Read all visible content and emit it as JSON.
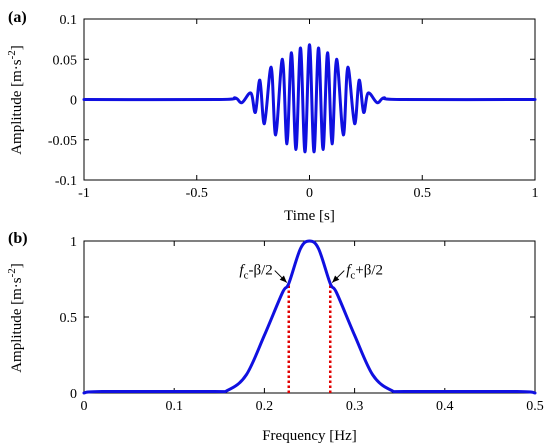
{
  "chart_data": [
    {
      "panel": "(a)",
      "type": "line",
      "xlabel": "Time [s]",
      "ylabel": "Amplitude [m·s",
      "ylabel_unit_exponent": "2",
      "xlim": [
        -1,
        1
      ],
      "ylim": [
        -0.1,
        0.1
      ],
      "xticks": [
        "-1",
        "-0.5",
        "0",
        "0.5",
        "1"
      ],
      "yticks": [
        "-0.1",
        "-0.05",
        "0",
        "0.05",
        "0.1"
      ],
      "series": [
        {
          "color": "#1010e0",
          "x": [
            -1,
            -0.4,
            -0.33,
            -0.3,
            -0.26,
            -0.24,
            -0.22,
            -0.2,
            -0.17,
            -0.15,
            -0.12,
            -0.1,
            -0.08,
            -0.06,
            -0.04,
            -0.02,
            0,
            0.02,
            0.04,
            0.06,
            0.08,
            0.1,
            0.12,
            0.15,
            0.17,
            0.2,
            0.22,
            0.24,
            0.26,
            0.3,
            0.33,
            0.4,
            1
          ],
          "y": [
            0,
            0,
            0.002,
            -0.004,
            0.008,
            -0.016,
            0.024,
            -0.03,
            0.04,
            -0.044,
            0.05,
            -0.055,
            0.058,
            -0.062,
            0.064,
            -0.065,
            0.068,
            -0.065,
            0.064,
            -0.062,
            0.058,
            -0.055,
            0.05,
            -0.044,
            0.04,
            -0.03,
            0.024,
            -0.016,
            0.008,
            -0.004,
            0.002,
            0,
            0
          ]
        }
      ]
    },
    {
      "panel": "(b)",
      "type": "line",
      "xlabel": "Frequency [Hz]",
      "ylabel": "Amplitude [m·s",
      "ylabel_unit_exponent": "2",
      "xlim": [
        0,
        0.5
      ],
      "ylim": [
        0,
        1
      ],
      "xticks": [
        "0",
        "0.1",
        "0.2",
        "0.3",
        "0.4",
        "0.5"
      ],
      "yticks": [
        "0",
        "0.5",
        "1"
      ],
      "series": [
        {
          "color": "#1010e0",
          "x": [
            0,
            0.02,
            0.14,
            0.16,
            0.18,
            0.2,
            0.22,
            0.227,
            0.24,
            0.25,
            0.26,
            0.273,
            0.28,
            0.3,
            0.32,
            0.34,
            0.36,
            0.48,
            0.5
          ],
          "y": [
            0,
            0.01,
            0.01,
            0.02,
            0.12,
            0.38,
            0.66,
            0.72,
            0.95,
            1.0,
            0.95,
            0.72,
            0.66,
            0.38,
            0.12,
            0.02,
            0.01,
            0.01,
            0
          ],
          "smooth": true
        }
      ],
      "markers": [
        {
          "x": 0.227,
          "y_top": 0.72,
          "style": "dotted",
          "color": "#e00000"
        },
        {
          "x": 0.273,
          "y_top": 0.72,
          "style": "dotted",
          "color": "#e00000"
        }
      ],
      "annotations": [
        {
          "f": "f",
          "sub": "c",
          "op": "-β/2",
          "target_x": 0.227,
          "target_y": 0.72,
          "side": "left"
        },
        {
          "f": "f",
          "sub": "c",
          "op": "+β/2",
          "target_x": 0.273,
          "target_y": 0.72,
          "side": "right"
        }
      ]
    }
  ]
}
